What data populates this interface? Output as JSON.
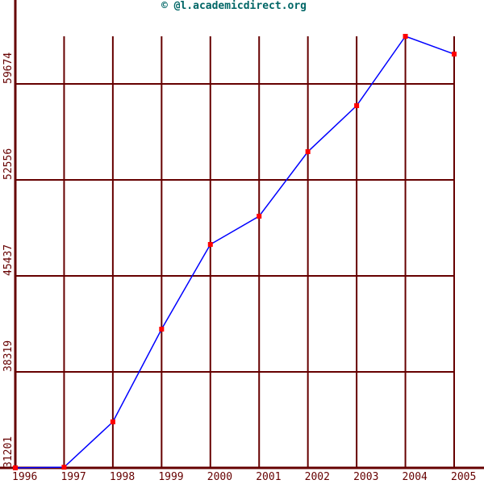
{
  "chart_data": {
    "type": "line",
    "title": "© @l.academicdirect.org",
    "x": [
      1996,
      1997,
      1998,
      1999,
      2000,
      2001,
      2002,
      2003,
      2004,
      2005
    ],
    "series": [
      {
        "color": "#0000ff",
        "marker_color": "#ff0000",
        "values": [
          31201,
          31250,
          34610,
          41489,
          47770,
          49863,
          54648,
          58058,
          63203,
          61886
        ]
      }
    ],
    "xlim": [
      1996,
      2005
    ],
    "xticks": [
      1996,
      1997,
      1998,
      1999,
      2000,
      2001,
      2002,
      2003,
      2004,
      2005
    ],
    "ylim": [
      31201,
      63203
    ],
    "yticks": [
      31201,
      38319,
      45437,
      52556,
      59674
    ],
    "grid": true,
    "grid_color": "#660000"
  }
}
